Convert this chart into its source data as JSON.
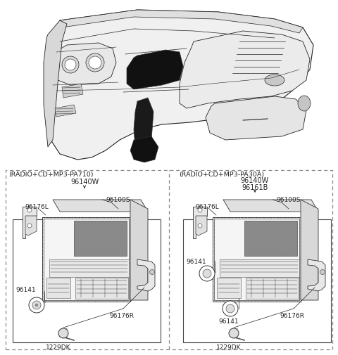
{
  "bg_color": "#ffffff",
  "fig_width": 4.8,
  "fig_height": 5.06,
  "dpi": 100,
  "left_box_label": "(RADIO+CD+MP3-PA710)",
  "right_box_label": "(RADIO+CD+MP3-PA30A)",
  "left_part_num": "96140W",
  "right_part_num1": "96140W",
  "right_part_num2": "96161B",
  "font_size_label": 6.5,
  "font_size_partnum": 7.0,
  "font_size_header": 6.8,
  "line_color": "#222222",
  "dashed_box_color": "#888888",
  "lc": "#222222"
}
